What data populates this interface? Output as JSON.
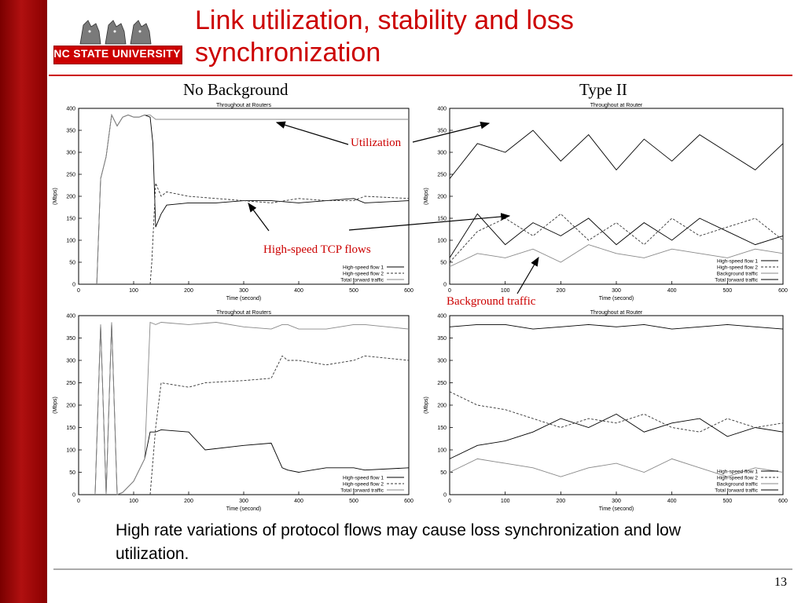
{
  "slide": {
    "title": "Link utilization, stability and loss synchronization",
    "logo_text": "NC STATE UNIVERSITY",
    "column_left": "No Background",
    "column_right": "Type II",
    "caption": "High rate variations of protocol flows may cause loss synchronization and low utilization.",
    "page_number": "13",
    "annotations": {
      "utilization": "Utilization",
      "high_speed": "High-speed TCP flows",
      "background": "Background traffic"
    },
    "colors": {
      "accent": "#cc0000",
      "stripe": "#a00000"
    }
  },
  "chart_data": [
    {
      "type": "line",
      "title": "Throughout at Routers",
      "xlabel": "Time (second)",
      "ylabel": "(Mbps)",
      "xlim": [
        0,
        600
      ],
      "ylim": [
        0,
        400
      ],
      "x_ticks": [
        0,
        100,
        200,
        300,
        400,
        500,
        600
      ],
      "y_ticks": [
        0,
        50,
        100,
        150,
        200,
        250,
        300,
        350,
        400
      ],
      "legend": "bottom-right",
      "series": [
        {
          "name": "High-speed flow 1",
          "x": [
            33,
            40,
            50,
            60,
            70,
            80,
            90,
            100,
            110,
            120,
            130,
            135,
            140,
            150,
            160,
            200,
            250,
            300,
            350,
            400,
            450,
            500,
            520,
            600
          ],
          "y": [
            0,
            240,
            290,
            385,
            360,
            380,
            385,
            380,
            380,
            385,
            380,
            320,
            130,
            160,
            180,
            185,
            185,
            190,
            190,
            185,
            190,
            195,
            185,
            190
          ]
        },
        {
          "name": "High-speed flow 2",
          "x": [
            130,
            133,
            140,
            150,
            160,
            200,
            250,
            300,
            350,
            400,
            450,
            500,
            520,
            600
          ],
          "y": [
            0,
            50,
            230,
            200,
            210,
            200,
            195,
            190,
            185,
            195,
            190,
            190,
            200,
            195
          ]
        },
        {
          "name": "Total forward traffic",
          "x": [
            33,
            40,
            50,
            60,
            70,
            80,
            90,
            100,
            110,
            120,
            130,
            140,
            160,
            200,
            250,
            300,
            350,
            400,
            450,
            500,
            520,
            600
          ],
          "y": [
            0,
            240,
            290,
            385,
            360,
            380,
            385,
            380,
            380,
            385,
            385,
            375,
            375,
            375,
            375,
            375,
            375,
            375,
            375,
            375,
            375,
            375
          ]
        }
      ]
    },
    {
      "type": "line",
      "title": "Throughout at Router",
      "xlabel": "Time (second)",
      "ylabel": "(Mbps)",
      "xlim": [
        0,
        600
      ],
      "ylim": [
        0,
        400
      ],
      "x_ticks": [
        0,
        100,
        200,
        300,
        400,
        500,
        600
      ],
      "y_ticks": [
        0,
        50,
        100,
        150,
        200,
        250,
        300,
        350,
        400
      ],
      "legend": "bottom-right",
      "series": [
        {
          "name": "High-speed flow 1",
          "x": [
            0,
            50,
            100,
            150,
            200,
            250,
            300,
            350,
            400,
            450,
            500,
            550,
            600
          ],
          "y": [
            60,
            160,
            90,
            140,
            110,
            150,
            90,
            140,
            100,
            150,
            120,
            90,
            110
          ]
        },
        {
          "name": "High-speed flow 2",
          "x": [
            0,
            50,
            100,
            150,
            200,
            250,
            300,
            350,
            400,
            450,
            500,
            550,
            600
          ],
          "y": [
            50,
            120,
            150,
            110,
            160,
            100,
            140,
            90,
            150,
            110,
            130,
            150,
            100
          ]
        },
        {
          "name": "Background traffic",
          "x": [
            0,
            50,
            100,
            150,
            200,
            250,
            300,
            350,
            400,
            450,
            500,
            550,
            600
          ],
          "y": [
            40,
            70,
            60,
            80,
            50,
            90,
            70,
            60,
            80,
            70,
            60,
            80,
            70
          ]
        },
        {
          "name": "Total forward traffic",
          "x": [
            0,
            50,
            100,
            150,
            200,
            250,
            300,
            350,
            400,
            450,
            500,
            550,
            600
          ],
          "y": [
            240,
            320,
            300,
            350,
            280,
            340,
            260,
            330,
            280,
            340,
            300,
            260,
            320
          ]
        }
      ]
    },
    {
      "type": "line",
      "title": "Throughout at Routers",
      "xlabel": "Time (second)",
      "ylabel": "(Mbps)",
      "xlim": [
        0,
        600
      ],
      "ylim": [
        0,
        400
      ],
      "x_ticks": [
        0,
        100,
        200,
        300,
        400,
        500,
        600
      ],
      "y_ticks": [
        0,
        50,
        100,
        150,
        200,
        250,
        300,
        350,
        400
      ],
      "legend": "bottom-right",
      "series": [
        {
          "name": "High-speed flow 1",
          "x": [
            30,
            40,
            50,
            60,
            70,
            80,
            100,
            120,
            130,
            140,
            150,
            200,
            230,
            300,
            350,
            370,
            380,
            400,
            450,
            500,
            520,
            600
          ],
          "y": [
            0,
            380,
            0,
            385,
            0,
            5,
            30,
            80,
            140,
            140,
            145,
            140,
            100,
            110,
            115,
            60,
            55,
            50,
            60,
            60,
            55,
            60
          ]
        },
        {
          "name": "High-speed flow 2",
          "x": [
            130,
            140,
            150,
            200,
            230,
            300,
            350,
            370,
            380,
            400,
            450,
            500,
            520,
            600
          ],
          "y": [
            0,
            150,
            250,
            240,
            250,
            255,
            260,
            310,
            300,
            300,
            290,
            300,
            310,
            300
          ]
        },
        {
          "name": "Total forward traffic",
          "x": [
            30,
            40,
            50,
            60,
            70,
            80,
            100,
            120,
            130,
            140,
            150,
            200,
            250,
            300,
            350,
            370,
            380,
            400,
            450,
            500,
            520,
            600
          ],
          "y": [
            0,
            380,
            0,
            385,
            0,
            5,
            30,
            80,
            385,
            380,
            385,
            380,
            385,
            375,
            370,
            380,
            380,
            370,
            370,
            380,
            380,
            370
          ]
        }
      ]
    },
    {
      "type": "line",
      "title": "Throughout at Router",
      "xlabel": "Time (second)",
      "ylabel": "(Mbps)",
      "xlim": [
        0,
        600
      ],
      "ylim": [
        0,
        400
      ],
      "x_ticks": [
        0,
        100,
        200,
        300,
        400,
        500,
        600
      ],
      "y_ticks": [
        0,
        50,
        100,
        150,
        200,
        250,
        300,
        350,
        400
      ],
      "legend": "bottom-right",
      "series": [
        {
          "name": "High-speed flow 1",
          "x": [
            0,
            50,
            100,
            150,
            200,
            250,
            300,
            350,
            400,
            450,
            500,
            550,
            600
          ],
          "y": [
            80,
            110,
            120,
            140,
            170,
            150,
            180,
            140,
            160,
            170,
            130,
            150,
            140
          ]
        },
        {
          "name": "High-speed flow 2",
          "x": [
            0,
            50,
            100,
            150,
            200,
            250,
            300,
            350,
            400,
            450,
            500,
            550,
            600
          ],
          "y": [
            230,
            200,
            190,
            170,
            150,
            170,
            160,
            180,
            150,
            140,
            170,
            150,
            160
          ]
        },
        {
          "name": "Background traffic",
          "x": [
            0,
            50,
            100,
            150,
            200,
            250,
            300,
            350,
            400,
            450,
            500,
            550,
            600
          ],
          "y": [
            50,
            80,
            70,
            60,
            40,
            60,
            70,
            50,
            80,
            60,
            40,
            60,
            50
          ]
        },
        {
          "name": "Total forward traffic",
          "x": [
            0,
            50,
            100,
            150,
            200,
            250,
            300,
            350,
            400,
            450,
            500,
            550,
            600
          ],
          "y": [
            375,
            380,
            380,
            370,
            375,
            380,
            375,
            380,
            370,
            375,
            380,
            375,
            370
          ]
        }
      ]
    }
  ]
}
